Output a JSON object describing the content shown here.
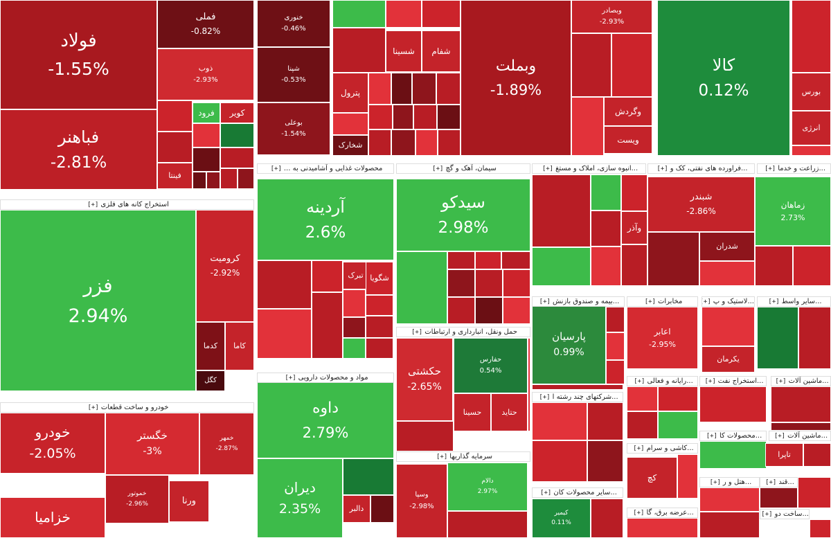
{
  "colors": {
    "deep_red": "#6b0f14",
    "dark_red": "#8e151c",
    "red": "#b81d25",
    "mid_red": "#cc232b",
    "light_red": "#e2323a",
    "green": "#3dbb4a",
    "dark_green": "#187a34",
    "mid_green": "#2c9c43"
  },
  "toggle_label": "[+]",
  "group_headers": [
    {
      "title": "استخراج کانه های فلزی"
    },
    {
      "title": "خودرو و ساخت قطعات"
    },
    {
      "title": "محصولات غذایی و آشامیدنی به ..."
    },
    {
      "title": "سیمان، آهک و گچ"
    },
    {
      "title": "...انبوه سازی، املاک و مستغ"
    },
    {
      "title": "...فراورده های نفتی، کک و"
    },
    {
      "title": "...زراعت و خدما"
    },
    {
      "title": "حمل ونقل، انبارداری و ارتباطات"
    },
    {
      "title": "...بیمه و صندوق بازنش"
    },
    {
      "title": "مخابرات"
    },
    {
      "title": "...لاستیک و پ"
    },
    {
      "title": "...سایر واسط"
    },
    {
      "title": "مواد و محصولات دارویی"
    },
    {
      "title": "...رایانه و فعالی"
    },
    {
      "title": "...استخراج نفت"
    },
    {
      "title": "...ماشین آلات"
    },
    {
      "title": "...شرکتهای چند رشته ا"
    },
    {
      "title": "سرمایه گذاریها"
    },
    {
      "title": "...کاشی و سرام"
    },
    {
      "title": "...محصولات کا"
    },
    {
      "title": "...ماشین آلات"
    },
    {
      "title": "...سایر محصولات کان"
    },
    {
      "title": "...هتل و ر"
    },
    {
      "title": "...قند"
    },
    {
      "title": "...عرضه برق، گا"
    },
    {
      "title": "...ساخت دو"
    }
  ],
  "cells": [
    {
      "symbol": "فولاد",
      "change": "-1.55%",
      "color": "#a8191f"
    },
    {
      "symbol": "فباهنر",
      "change": "-2.81%",
      "color": "#bd1f26"
    },
    {
      "symbol": "فملی",
      "change": "-0.82%",
      "color": "#6e1015"
    },
    {
      "symbol": "ذوب",
      "change": "-2.93%",
      "color": "#cf2a30"
    },
    {
      "symbol": "فرود",
      "change": "",
      "color": "#3dbb4a"
    },
    {
      "symbol": "کویر",
      "change": "",
      "color": "#c4232a"
    },
    {
      "symbol": "فینتا",
      "change": "",
      "color": "#c4232a"
    },
    {
      "symbol": "فزر",
      "change": "2.94%",
      "color": "#3dbb4a"
    },
    {
      "symbol": "کرومیت",
      "change": "-2.92%",
      "color": "#c8242b"
    },
    {
      "symbol": "کاما",
      "change": "",
      "color": "#c4232a"
    },
    {
      "symbol": "کدما",
      "change": "",
      "color": "#7e1117"
    },
    {
      "symbol": "کگل",
      "change": "",
      "color": "#4a0a0e"
    },
    {
      "symbol": "خودرو",
      "change": "-2.05%",
      "color": "#c7232a"
    },
    {
      "symbol": "خگستر",
      "change": "-3%",
      "color": "#d52a31"
    },
    {
      "symbol": "خزامیا",
      "change": "",
      "color": "#d52a31"
    },
    {
      "symbol": "ورنا",
      "change": "",
      "color": "#c4232a"
    },
    {
      "symbol": "خمهر",
      "change": "-2.87%",
      "color": "#c4232a"
    },
    {
      "symbol": "خموتور",
      "change": "-2.96%",
      "color": "#b81d25"
    },
    {
      "symbol": "خنوری",
      "change": "-0.46%",
      "color": "#6e1015"
    },
    {
      "symbol": "شپنا",
      "change": "-0.53%",
      "color": "#6e1015"
    },
    {
      "symbol": "بوعلی",
      "change": "-1.54%",
      "color": "#8e151c"
    },
    {
      "symbol": "شسینا",
      "change": "",
      "color": "#c4232a"
    },
    {
      "symbol": "شفام",
      "change": "",
      "color": "#c4232a"
    },
    {
      "symbol": "پترول",
      "change": "",
      "color": "#c4232a"
    },
    {
      "symbol": "شخارک",
      "change": "",
      "color": "#6e1015"
    },
    {
      "symbol": "وبملت",
      "change": "-1.89%",
      "color": "#a8191f"
    },
    {
      "symbol": "کالا",
      "change": "0.12%",
      "color": "#1e8c3c"
    },
    {
      "symbol": "وبصادر",
      "change": "-2.93%",
      "color": "#c4232a"
    },
    {
      "symbol": "وگردش",
      "change": "",
      "color": "#c4232a"
    },
    {
      "symbol": "ویست",
      "change": "",
      "color": "#c4232a"
    },
    {
      "symbol": "بورس",
      "change": "",
      "color": "#c4232a"
    },
    {
      "symbol": "انرژی",
      "change": "",
      "color": "#c4232a"
    },
    {
      "symbol": "آردینه",
      "change": "2.6%",
      "color": "#3dbb4a"
    },
    {
      "symbol": "سیدکو",
      "change": "2.98%",
      "color": "#3dbb4a"
    },
    {
      "symbol": "شبندر",
      "change": "-2.86%",
      "color": "#c4232a"
    },
    {
      "symbol": "شدران",
      "change": "",
      "color": "#8e151c"
    },
    {
      "symbol": "زماهان",
      "change": "2.73%",
      "color": "#3dbb4a"
    },
    {
      "symbol": "تبرک",
      "change": "",
      "color": "#c4232a"
    },
    {
      "symbol": "شگویا",
      "change": "",
      "color": "#cc232b"
    },
    {
      "symbol": "وآذر",
      "change": "",
      "color": "#c4232a"
    },
    {
      "symbol": "پارسیان",
      "change": "0.99%",
      "color": "#2c8a3c"
    },
    {
      "symbol": "اعابر",
      "change": "-2.95%",
      "color": "#d52a31"
    },
    {
      "symbol": "یکرمان",
      "change": "",
      "color": "#c4232a"
    },
    {
      "symbol": "حکشتی",
      "change": "-2.65%",
      "color": "#cf2a30"
    },
    {
      "symbol": "حفارس",
      "change": "0.54%",
      "color": "#1e7a38"
    },
    {
      "symbol": "حسینا",
      "change": "",
      "color": "#c4232a"
    },
    {
      "symbol": "حتاید",
      "change": "",
      "color": "#c4232a"
    },
    {
      "symbol": "داوه",
      "change": "2.79%",
      "color": "#3dbb4a"
    },
    {
      "symbol": "دیران",
      "change": "2.35%",
      "color": "#3dbb4a"
    },
    {
      "symbol": "دالبر",
      "change": "",
      "color": "#c4232a"
    },
    {
      "symbol": "وسپا",
      "change": "-2.98%",
      "color": "#c4232a"
    },
    {
      "symbol": "دالام",
      "change": "2.97%",
      "color": "#3dbb4a"
    },
    {
      "symbol": "تاپرا",
      "change": "",
      "color": "#c4232a"
    },
    {
      "symbol": "کچ",
      "change": "",
      "color": "#c4232a"
    },
    {
      "symbol": "کیمیر",
      "change": "0.11%",
      "color": "#1e8c3c"
    }
  ]
}
